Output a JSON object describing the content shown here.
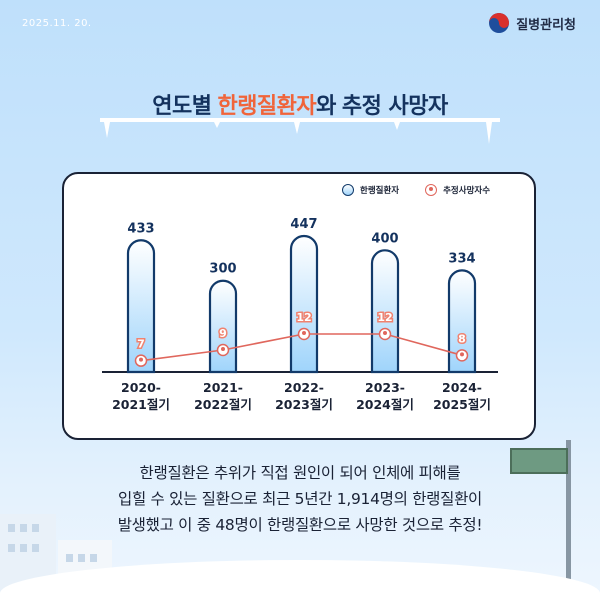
{
  "date": "2025.11. 20.",
  "agency": {
    "name": "질병관리청",
    "logo_icon": "taegeuk-logo-icon"
  },
  "title": {
    "part1": "연도별",
    "highlight": "한랭질환자",
    "part2": "와",
    "part3": "추정 사망자"
  },
  "legend": {
    "patients": "한랭질환자",
    "deaths": "추정사망자수"
  },
  "chart_data": {
    "type": "bar",
    "categories": [
      [
        "2020-",
        "2021절기"
      ],
      [
        "2021-",
        "2022절기"
      ],
      [
        "2022-",
        "2023절기"
      ],
      [
        "2023-",
        "2024절기"
      ],
      [
        "2024-",
        "2025절기"
      ]
    ],
    "series": [
      {
        "name": "한랭질환자",
        "type": "bar",
        "values": [
          433,
          300,
          447,
          400,
          334
        ]
      },
      {
        "name": "추정사망자수",
        "type": "line",
        "values": [
          7,
          9,
          12,
          12,
          8
        ]
      }
    ],
    "bar_ylim": [
      0,
      480
    ],
    "line_ylim": [
      0,
      24
    ],
    "grid": false,
    "legend_placement": "top-right",
    "colors": {
      "bar_outline": "#123a6a",
      "bar_fill_bottom": "#9fd4fb",
      "line": "#e0675d",
      "bar_value": "#14325e",
      "line_value_bg": "#f0826f"
    }
  },
  "caption": {
    "line1": "한랭질환은 추위가 직접 원인이 되어 인체에 피해를",
    "line2": "입힐 수 있는 질환으로 최근 5년간 1,914명의 한랭질환이",
    "line3": "발생했고 이 중 48명이 한랭질환으로 사망한 것으로 추정!"
  }
}
